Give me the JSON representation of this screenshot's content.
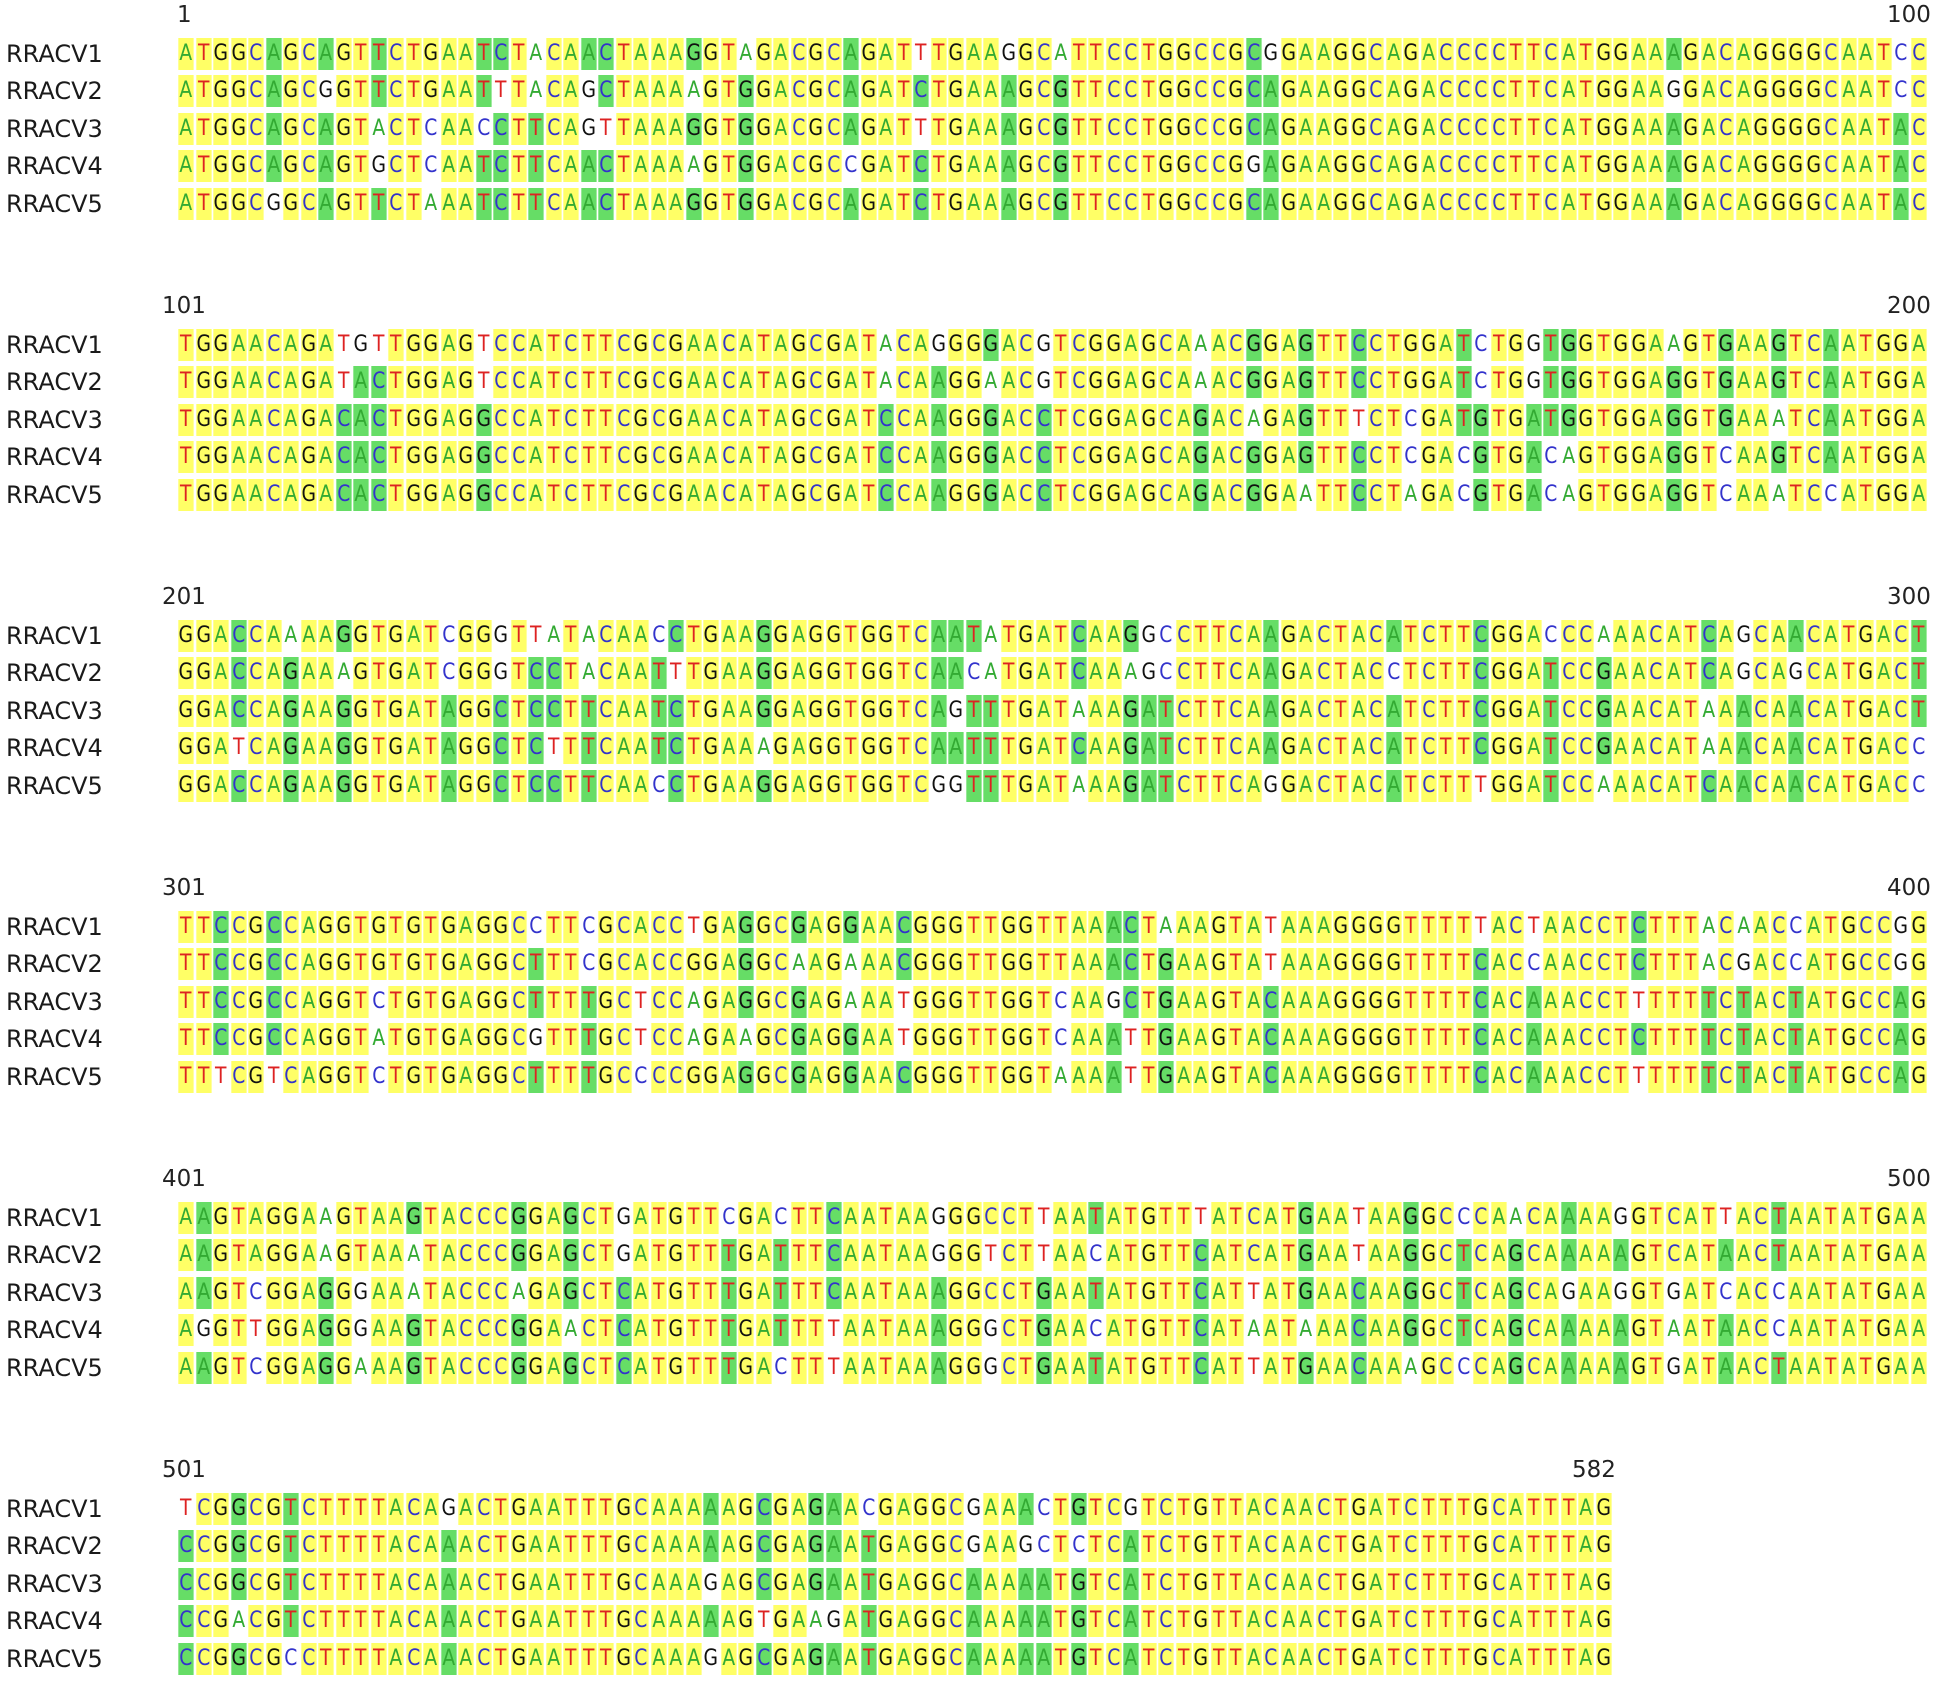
{
  "blocks": [
    {
      "start": "1",
      "end": "100",
      "rows": [
        {
          "name": "RRACV1",
          "seq": "ATGGCAGCAGTTCTGAATCTACAACTAAAGGTAGACGCAGATTTGAAGGCATTCCTGGCCGCGGAAGGCAGACCCCTTCATGGAAAGACAGGGGCAATCC"
        },
        {
          "name": "RRACV2",
          "seq": "ATGGCAGCGGTTCTGAATTTACAGCTAAAAGTGGACGCAGATCTGAAAGCGTTCCTGGCCGCAGAAGGCAGACCCCTTCATGGAAGGACAGGGGCAATCC"
        },
        {
          "name": "RRACV3",
          "seq": "ATGGCAGCAGTACTCAACCTTCAGTTAAAGGTGGACGCAGATTTGAAAGCGTTCCTGGCCGCAGAAGGCAGACCCCTTCATGGAAAGACAGGGGCAATAC"
        },
        {
          "name": "RRACV4",
          "seq": "ATGGCAGCAGTGCTCAATCTTCAACTAAAAGTGGACGCCGATCTGAAAGCGTTCCTGGCCGGAGAAGGCAGACCCCTTCATGGAAAGACAGGGGCAATAC"
        },
        {
          "name": "RRACV5",
          "seq": "ATGGCGGCAGTTCTAAATCTTCAACTAAAGGTGGACGCAGATCTGAAAGCGTTCCTGGCCGCAGAAGGCAGACCCCTTCATGGAAAGACAGGGGCAATAC"
        }
      ]
    },
    {
      "start": "101",
      "end": "200",
      "rows": [
        {
          "name": "RRACV1",
          "seq": "TGGAACAGATGTTGGAGTCCATCTTCGCGAACATAGCGATACAGGGGACGTCGGAGCAAACGGAGTTCCTGGATCTGGTGGTGGAAGTGAAGTCAATGGA"
        },
        {
          "name": "RRACV2",
          "seq": "TGGAACAGATACTGGAGTCCATCTTCGCGAACATAGCGATACAAGGAACGTCGGAGCAAACGGAGTTCCTGGATCTGGTGGTGGAGGTGAAGTCAATGGA"
        },
        {
          "name": "RRACV3",
          "seq": "TGGAACAGACACTGGAGGCCATCTTCGCGAACATAGCGATCCAAGGGACCTCGGAGCAGACAGAGTTTCTCGATGTGATGGTGGAGGTGAAATCAATGGA"
        },
        {
          "name": "RRACV4",
          "seq": "TGGAACAGACACTGGAGGCCATCTTCGCGAACATAGCGATCCAAGGGACCTCGGAGCAGACGGAGTTCCTCGACGTGACAGTGGAGGTCAAGTCAATGGA"
        },
        {
          "name": "RRACV5",
          "seq": "TGGAACAGACACTGGAGGCCATCTTCGCGAACATAGCGATCCAAGGGACCTCGGAGCAGACGGAATTCCTAGACGTGACAGTGGAGGTCAAATCCATGGA"
        }
      ]
    },
    {
      "start": "201",
      "end": "300",
      "rows": [
        {
          "name": "RRACV1",
          "seq": "GGACCAAAAGGTGATCGGGTTATACAACCTGAAGGAGGTGGTCAATATGATCAAGGCCTTCAAGACTACATCTTCGGACCCAAACATCAGCAACATGACT"
        },
        {
          "name": "RRACV2",
          "seq": "GGACCAGAAAGTGATCGGGTCCTACAATTTGAAGGAGGTGGTCAACATGATCAAAGCCTTCAAGACTACCTCTTCGGATCCGAACATCAGCAGCATGACT"
        },
        {
          "name": "RRACV3",
          "seq": "GGACCAGAAGGTGATAGGCTCCTTCAATCTGAAGGAGGTGGTCAGTTTGATAAAGATCTTCAAGACTACATCTTCGGATCCGAACATAAACAACATGACT"
        },
        {
          "name": "RRACV4",
          "seq": "GGATCAGAAGGTGATAGGCTCTTTCAATCTGAAAGAGGTGGTCAATTTGATCAAGATCTTCAAGACTACATCTTCGGATCCGAACATAAACAACATGACC"
        },
        {
          "name": "RRACV5",
          "seq": "GGACCAGAAGGTGATAGGCTCCTTCAACCTGAAGGAGGTGGTCGGTTTGATAAAGATCTTCAGGACTACATCTTTGGATCCAAACATCAACAACATGACC"
        }
      ]
    },
    {
      "start": "301",
      "end": "400",
      "rows": [
        {
          "name": "RRACV1",
          "seq": "TTCCGCCAGGTGTGTGAGGCCTTCGCACCTGAGGCGAGGAACGGGTTGGTTAAACTAAAGTATAAAGGGGTTTTTACTAACCTCTTTACAACCATGCCGG"
        },
        {
          "name": "RRACV2",
          "seq": "TTCCGCCAGGTGTGTGAGGCTTTCGCACCGGAGGCAAGAAACGGGTTGGTTAAACTGAAGTATAAAGGGGTTTTCACCAACCTCTTTACGACCATGCCGG"
        },
        {
          "name": "RRACV3",
          "seq": "TTCCGCCAGGTCTGTGAGGCTTTTGCTCCAGAGGCGAGAAATGGGTTGGTCAAGCTGAAGTACAAAGGGGTTTTCACAAACCTTTTTTCTACTATGCCAG"
        },
        {
          "name": "RRACV4",
          "seq": "TTCCGCCAGGTATGTGAGGCGTTTGCTCCAGAAGCGAGGAATGGGTTGGTCAAATTGAAGTACAAAGGGGTTTTCACAAACCTCTTTTCTACTATGCCAG"
        },
        {
          "name": "RRACV5",
          "seq": "TTTCGTCAGGTCTGTGAGGCTTTTGCCCCGGAGGCGAGGAACGGGTTGGTAAAATTGAAGTACAAAGGGGTTTTCACAAACCTTTTTTCTACTATGCCAG"
        }
      ]
    },
    {
      "start": "401",
      "end": "500",
      "rows": [
        {
          "name": "RRACV1",
          "seq": "AAGTAGGAAGTAAGTACCCGGAGCTGATGTTCGACTTCAATAAGGGCCTTAATATGTTTATCATGAATAAGGCCCAACAAAAGGTCATTACTAATATGAA"
        },
        {
          "name": "RRACV2",
          "seq": "AAGTAGGAAGTAAATACCCGGAGCTGATGTTTGATTTCAATAAGGGTCTTAACATGTTCATCATGAATAAGGCTCAGCAAAAAGTCATAACTAATATGAA"
        },
        {
          "name": "RRACV3",
          "seq": "AAGTCGGAGGGAAATACCCAGAGCTCATGTTTGATTTCAATAAAGGCCTGAATATGTTCATTATGAACAAGGCTCAGCAGAAGGTGATCACCAATATGAA"
        },
        {
          "name": "RRACV4",
          "seq": "AGGTTGGAGGGAAGTACCCGGAACTCATGTTTGATTTTAATAAAGGGCTGAACATGTTCATAATAAACAAGGCTCAGCAAAAAGTAATAACCAATATGAA"
        },
        {
          "name": "RRACV5",
          "seq": "AAGTCGGAGGAAAGTACCCGGAGCTCATGTTTGACTTTAATAAAGGGCTGAATATGTTCATTATGAACAAAGCCCAGCAAAAAGTGATAACTAATATGAA"
        }
      ]
    },
    {
      "start": "501",
      "end": "582",
      "rows": [
        {
          "name": "RRACV1",
          "seq": "TCGGCGTCTTTTACAGACTGAATTTGCAAAAAGCGAGAACGAGGCGAAACTGTCGTCTGTTACAACTGATCTTTGCATTTAG"
        },
        {
          "name": "RRACV2",
          "seq": "CCGGCGTCTTTTACAAACTGAATTTGCAAAAAGCGAGAATGAGGCGAAGCTCTCATCTGTTACAACTGATCTTTGCATTTAG"
        },
        {
          "name": "RRACV3",
          "seq": "CCGGCGTCTTTTACAAACTGAATTTGCAAAGAGCGAGAATGAGGCAAAAATGTCATCTGTTACAACTGATCTTTGCATTTAG"
        },
        {
          "name": "RRACV4",
          "seq": "CCGACGTCTTTTACAAACTGAATTTGCAAAAAGTGAAGATGAGGCAAAAATGTCATCTGTTACAACTGATCTTTGCATTTAG"
        },
        {
          "name": "RRACV5",
          "seq": "CCGGCGCCTTTTACAAACTGAATTTGCAAAGAGCGAGAATGAGGCAAAAATGTCATCTGTTACAACTGATCTTTGCATTTAG"
        }
      ]
    }
  ],
  "colors": {
    "A": "#33aa33",
    "C": "#3333cc",
    "G": "#111111",
    "T": "#dd2222",
    "conserved_bg": "#ffff66",
    "majority_bg": "#66dd66"
  }
}
